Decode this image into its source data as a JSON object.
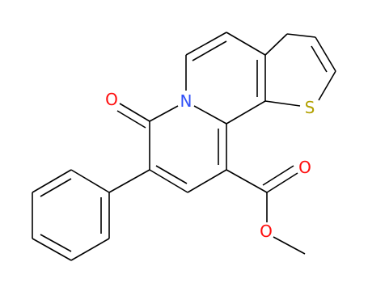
{
  "atoms": [
    {
      "label": "O"
    },
    {
      "label": "N"
    },
    {
      "label": "S"
    },
    {
      "label": "O"
    },
    {
      "label": "O"
    }
  ]
}
